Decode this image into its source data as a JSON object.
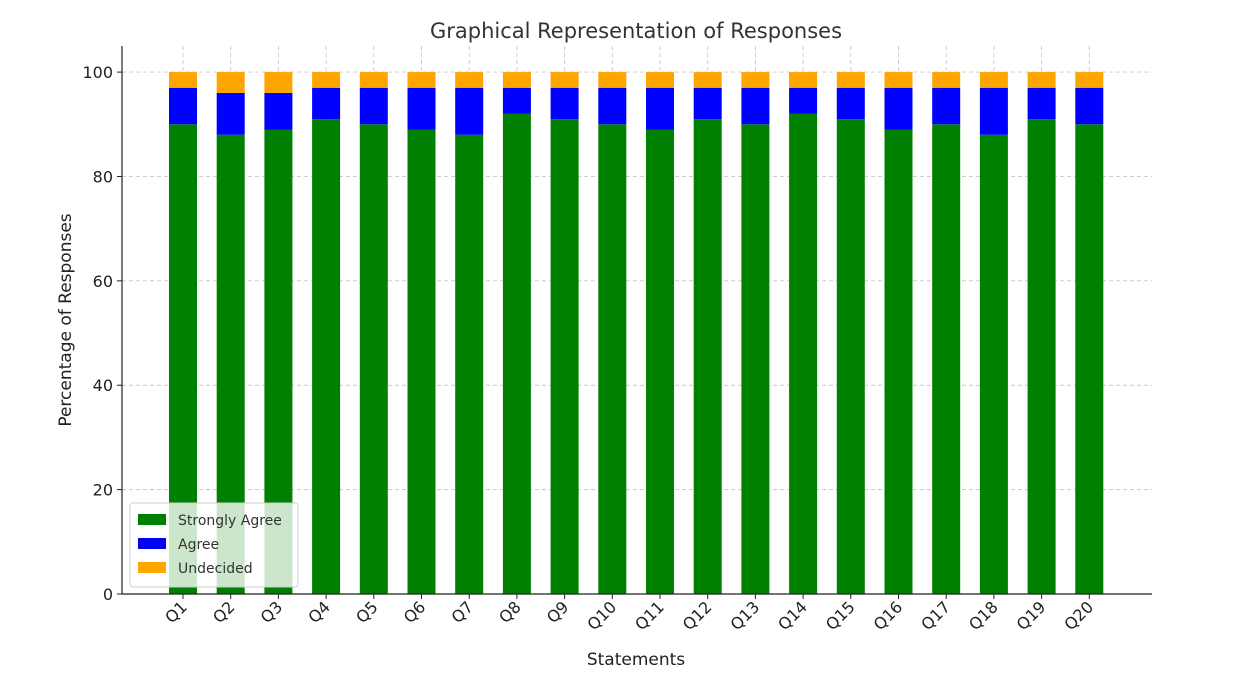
{
  "chart_data": {
    "type": "bar",
    "stacked": true,
    "title": "Graphical Representation of Responses",
    "xlabel": "Statements",
    "ylabel": "Percentage of Responses",
    "ylim": [
      0,
      105
    ],
    "yticks": [
      0,
      20,
      40,
      60,
      80,
      100
    ],
    "grid": true,
    "legend_position": "bottom-left",
    "categories": [
      "Q1",
      "Q2",
      "Q3",
      "Q4",
      "Q5",
      "Q6",
      "Q7",
      "Q8",
      "Q9",
      "Q10",
      "Q11",
      "Q12",
      "Q13",
      "Q14",
      "Q15",
      "Q16",
      "Q17",
      "Q18",
      "Q19",
      "Q20"
    ],
    "series": [
      {
        "name": "Strongly Agree",
        "color": "#008000",
        "values": [
          90,
          88,
          89,
          91,
          90,
          89,
          88,
          92,
          91,
          90,
          89,
          91,
          90,
          92,
          91,
          89,
          90,
          88,
          91,
          90
        ]
      },
      {
        "name": "Agree",
        "color": "#0000ff",
        "values": [
          7,
          8,
          7,
          6,
          7,
          8,
          9,
          5,
          6,
          7,
          8,
          6,
          7,
          5,
          6,
          8,
          7,
          9,
          6,
          7
        ]
      },
      {
        "name": "Undecided",
        "color": "#ffa500",
        "values": [
          3,
          4,
          4,
          3,
          3,
          3,
          3,
          3,
          3,
          3,
          3,
          3,
          3,
          3,
          3,
          3,
          3,
          3,
          3,
          3
        ]
      }
    ]
  }
}
